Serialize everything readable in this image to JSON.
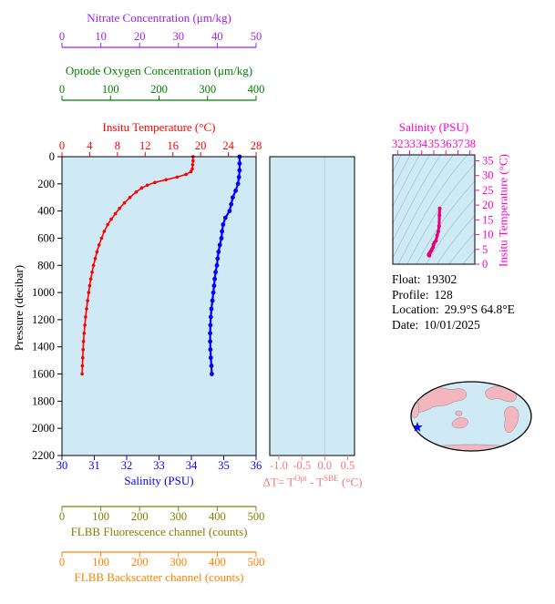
{
  "colors": {
    "page_bg": "#ffffff",
    "plot_bg": "#cfeaf5",
    "frame": "#000000",
    "nitrate": "#a020f0",
    "oxygen": "#008000",
    "temperature": "#ff0000",
    "salinity": "#0000ff",
    "delta_t": "#ee7a76",
    "fluorescence": "#808000",
    "backscatter": "#ff8000",
    "ts_axis": "#ff00cc",
    "ts_curve": "#e8007a",
    "contour": "#9cc8d4",
    "pressure": "#000000",
    "map_land": "#f3b6bf",
    "map_ocean": "#cfeaf5",
    "map_outline": "#000000",
    "star": "#0000ff"
  },
  "axes": {
    "nitrate": {
      "title": "Nitrate Concentration (μm/kg)",
      "lim": [
        0,
        50
      ],
      "tick_values": [
        0,
        10,
        20,
        30,
        40,
        50
      ],
      "tick_labels": [
        "0",
        "10",
        "20",
        "30",
        "40",
        "50"
      ]
    },
    "oxygen": {
      "title": "Optode Oxygen Concentration (μm/kg)",
      "lim": [
        0,
        400
      ],
      "tick_values": [
        0,
        100,
        200,
        300,
        400
      ],
      "tick_labels": [
        "0",
        "100",
        "200",
        "300",
        "400"
      ]
    },
    "temperature": {
      "title": "Insitu Temperature (°C)",
      "lim": [
        0,
        28
      ],
      "tick_values": [
        0,
        4,
        8,
        12,
        16,
        20,
        24,
        28
      ],
      "tick_labels": [
        "0",
        "4",
        "8",
        "12",
        "16",
        "20",
        "24",
        "28"
      ]
    },
    "pressure": {
      "title": "Pressure (decibar)",
      "lim": [
        0,
        2200
      ],
      "tick_values": [
        0,
        200,
        400,
        600,
        800,
        1000,
        1200,
        1400,
        1600,
        1800,
        2000,
        2200
      ],
      "tick_labels": [
        "0",
        "200",
        "400",
        "600",
        "800",
        "1000",
        "1200",
        "1400",
        "1600",
        "1800",
        "2000",
        "2200"
      ]
    },
    "salinity": {
      "title": "Salinity (PSU)",
      "lim": [
        30,
        36
      ],
      "tick_values": [
        30,
        31,
        32,
        33,
        34,
        35,
        36
      ],
      "tick_labels": [
        "30",
        "31",
        "32",
        "33",
        "34",
        "35",
        "36"
      ]
    },
    "fluorescence": {
      "title": "FLBB Fluorescence channel (counts)",
      "lim": [
        0,
        500
      ],
      "tick_values": [
        0,
        100,
        200,
        300,
        400,
        500
      ],
      "tick_labels": [
        "0",
        "100",
        "200",
        "300",
        "400",
        "500"
      ]
    },
    "backscatter": {
      "title": "FLBB Backscatter channel (counts)",
      "lim": [
        0,
        500
      ],
      "tick_values": [
        0,
        100,
        200,
        300,
        400,
        500
      ],
      "tick_labels": [
        "0",
        "100",
        "200",
        "300",
        "400",
        "500"
      ]
    },
    "delta_t": {
      "title_parts": {
        "prefix": "ΔT= T",
        "sup1": "Opt",
        "mid": " - T",
        "sup2": "SBE",
        "suffix": " (°C)"
      },
      "lim": [
        -1.2,
        0.65
      ],
      "tick_values": [
        -1.0,
        -0.5,
        0.0,
        0.5
      ],
      "tick_labels": [
        "-1.0",
        "-0.5",
        "0.0",
        "0.5"
      ]
    },
    "ts_salinity": {
      "title": "Salinity (PSU)",
      "lim": [
        31.6,
        38.4
      ],
      "tick_values": [
        32,
        33,
        34,
        35,
        36,
        37,
        38
      ],
      "tick_labels": [
        "32",
        "33",
        "34",
        "35",
        "36",
        "37",
        "38"
      ]
    },
    "ts_temperature": {
      "title": "Insitu Temperature (°C)",
      "lim": [
        0,
        37
      ],
      "tick_values": [
        0,
        5,
        10,
        15,
        20,
        25,
        30,
        35
      ],
      "tick_labels": [
        "0",
        "5",
        "10",
        "15",
        "20",
        "25",
        "30",
        "35"
      ]
    }
  },
  "info": {
    "lines": [
      {
        "label": "Float:",
        "value": "19302"
      },
      {
        "label": "Profile:",
        "value": "128"
      },
      {
        "label": "Location:",
        "value": "29.9°S 64.8°E"
      },
      {
        "label": "Date:",
        "value": "10/01/2025"
      }
    ]
  },
  "chart_data": [
    {
      "id": "main-profile",
      "type": "line",
      "ylabel": "Pressure (decibar)",
      "ylim": [
        0,
        2200
      ],
      "x_axes": [
        {
          "label": "Insitu Temperature (°C)",
          "lim": [
            0,
            28
          ]
        },
        {
          "label": "Salinity (PSU)",
          "lim": [
            30,
            36
          ]
        },
        {
          "label": "Nitrate Concentration (μm/kg)",
          "lim": [
            0,
            50
          ],
          "note": "axis shown, no data plotted"
        },
        {
          "label": "Optode Oxygen Concentration (μm/kg)",
          "lim": [
            0,
            400
          ],
          "note": "axis shown, no data plotted"
        },
        {
          "label": "FLBB Fluorescence channel (counts)",
          "lim": [
            0,
            500
          ],
          "note": "axis shown, no data plotted"
        },
        {
          "label": "FLBB Backscatter channel (counts)",
          "lim": [
            0,
            500
          ],
          "note": "axis shown, no data plotted"
        }
      ],
      "point_format": "[pressure_decibar, value]",
      "series": [
        {
          "name": "Insitu Temperature (°C)",
          "color": "#ff0000",
          "points": [
            [
              0,
              18.9
            ],
            [
              30,
              18.9
            ],
            [
              60,
              18.85
            ],
            [
              90,
              18.8
            ],
            [
              110,
              18.6
            ],
            [
              130,
              17.9
            ],
            [
              150,
              16.6
            ],
            [
              170,
              15.0
            ],
            [
              190,
              13.4
            ],
            [
              210,
              12.3
            ],
            [
              230,
              11.5
            ],
            [
              260,
              10.7
            ],
            [
              300,
              9.8
            ],
            [
              340,
              9.0
            ],
            [
              380,
              8.3
            ],
            [
              420,
              7.7
            ],
            [
              460,
              7.1
            ],
            [
              500,
              6.6
            ],
            [
              550,
              6.1
            ],
            [
              600,
              5.7
            ],
            [
              650,
              5.35
            ],
            [
              700,
              5.05
            ],
            [
              750,
              4.8
            ],
            [
              800,
              4.55
            ],
            [
              850,
              4.35
            ],
            [
              900,
              4.15
            ],
            [
              950,
              4.0
            ],
            [
              1000,
              3.85
            ],
            [
              1060,
              3.7
            ],
            [
              1120,
              3.55
            ],
            [
              1180,
              3.4
            ],
            [
              1240,
              3.3
            ],
            [
              1300,
              3.2
            ],
            [
              1360,
              3.1
            ],
            [
              1420,
              3.05
            ],
            [
              1480,
              3.0
            ],
            [
              1540,
              2.95
            ],
            [
              1600,
              2.9
            ]
          ]
        },
        {
          "name": "Salinity (PSU)",
          "color": "#0000ff",
          "points": [
            [
              0,
              35.49
            ],
            [
              50,
              35.49
            ],
            [
              100,
              35.49
            ],
            [
              150,
              35.47
            ],
            [
              200,
              35.44
            ],
            [
              250,
              35.37
            ],
            [
              300,
              35.28
            ],
            [
              350,
              35.23
            ],
            [
              400,
              35.18
            ],
            [
              450,
              35.05
            ],
            [
              500,
              34.98
            ],
            [
              550,
              34.95
            ],
            [
              600,
              34.93
            ],
            [
              650,
              34.88
            ],
            [
              700,
              34.84
            ],
            [
              750,
              34.81
            ],
            [
              800,
              34.79
            ],
            [
              850,
              34.75
            ],
            [
              900,
              34.72
            ],
            [
              950,
              34.7
            ],
            [
              1000,
              34.68
            ],
            [
              1060,
              34.65
            ],
            [
              1120,
              34.62
            ],
            [
              1180,
              34.6
            ],
            [
              1240,
              34.59
            ],
            [
              1300,
              34.58
            ],
            [
              1360,
              34.58
            ],
            [
              1420,
              34.59
            ],
            [
              1480,
              34.6
            ],
            [
              1540,
              34.62
            ],
            [
              1600,
              34.63
            ]
          ]
        }
      ]
    },
    {
      "id": "delta-t-panel",
      "type": "line",
      "xlabel": "ΔT= T(Opt) - T(SBE) (°C)",
      "xlim": [
        -1.2,
        0.65
      ],
      "ylim": [
        0,
        2200
      ],
      "series": [],
      "note": "empty panel, zero reference gridline only"
    },
    {
      "id": "ts-diagram",
      "type": "line",
      "xlabel": "Salinity (PSU)",
      "xlim": [
        31.6,
        38.4
      ],
      "ylabel": "Insitu Temperature (°C)",
      "ylim": [
        0,
        37
      ],
      "background": "density isopycnal contours (decorative)",
      "point_format": "[salinity_psu, temperature_c]",
      "series": [
        {
          "name": "T-S curve",
          "color": "#e8007a",
          "points": [
            [
              35.49,
              18.9
            ],
            [
              35.47,
              16.6
            ],
            [
              35.44,
              12.9
            ],
            [
              35.37,
              11.0
            ],
            [
              35.28,
              9.8
            ],
            [
              35.18,
              8.0
            ],
            [
              35.05,
              7.3
            ],
            [
              34.98,
              6.6
            ],
            [
              34.93,
              5.7
            ],
            [
              34.84,
              5.05
            ],
            [
              34.79,
              4.55
            ],
            [
              34.72,
              4.15
            ],
            [
              34.68,
              3.85
            ],
            [
              34.62,
              3.55
            ],
            [
              34.6,
              3.4
            ],
            [
              34.59,
              3.3
            ],
            [
              34.58,
              3.15
            ],
            [
              34.59,
              3.05
            ],
            [
              34.63,
              2.9
            ]
          ]
        }
      ]
    },
    {
      "id": "location-map",
      "type": "map",
      "marker": {
        "symbol": "star",
        "color": "#0000ff",
        "meaning": "float position (southern Indian Ocean)"
      }
    }
  ]
}
